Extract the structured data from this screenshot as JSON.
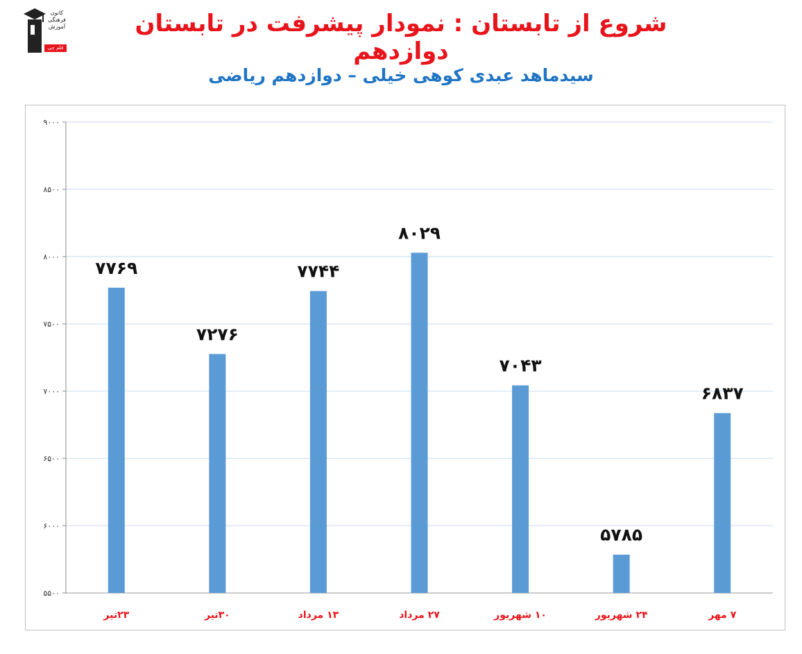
{
  "header": {
    "title": "شروع از تابستان : نمودار پیشرفت در تابستان دوازدهم",
    "subtitle": "سیدماهد عبدی کوهی خیلی – دوازدهم ریاضی"
  },
  "logo": {
    "text": "کانون فرهنگی آموزش",
    "tag": "قلم چی"
  },
  "colors": {
    "title": "#e8141b",
    "subtitle": "#1f74c4",
    "bar": "#5b9bd5",
    "grid": "#c6d9f1",
    "category_label": "#e8141b"
  },
  "chart_data": {
    "type": "bar",
    "title": "",
    "xlabel": "",
    "ylabel": "",
    "categories": [
      "۲۳تیر",
      "۳۰تیر",
      "۱۳ مرداد",
      "۲۷ مرداد",
      "۱۰ شهریور",
      "۲۴ شهریور",
      "۷ مهر"
    ],
    "values": [
      7769,
      7276,
      7744,
      8029,
      7043,
      5785,
      6837
    ],
    "value_labels": [
      "۷۷۶۹",
      "۷۲۷۶",
      "۷۷۴۴",
      "۸۰۲۹",
      "۷۰۴۳",
      "۵۷۸۵",
      "۶۸۳۷"
    ],
    "ylim": [
      5500,
      9000
    ],
    "yticks": [
      5500,
      6000,
      6500,
      7000,
      7500,
      8000,
      8500,
      9000
    ],
    "ytick_labels": [
      "۵۵۰۰",
      "۶۰۰۰",
      "۶۵۰۰",
      "۷۰۰۰",
      "۷۵۰۰",
      "۸۰۰۰",
      "۸۵۰۰",
      "۹۰۰۰"
    ],
    "grid": true,
    "legend": "none"
  }
}
